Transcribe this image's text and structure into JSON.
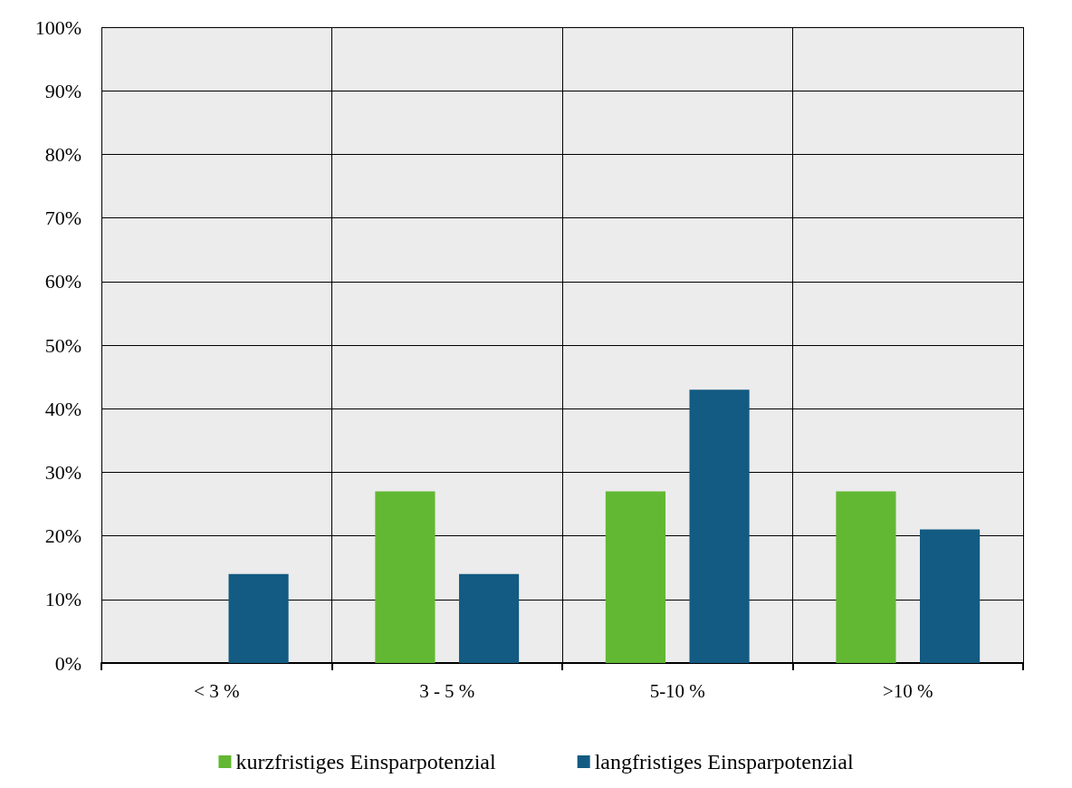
{
  "chart_data": {
    "type": "bar",
    "categories": [
      "< 3 %",
      "3 - 5 %",
      "5-10 %",
      ">10 %"
    ],
    "series": [
      {
        "name": "kurzfristiges Einsparpotenzial",
        "color": "#62b832",
        "values": [
          0,
          27,
          27,
          27
        ]
      },
      {
        "name": "langfristiges Einsparpotenzial",
        "color": "#135b82",
        "values": [
          14,
          14,
          43,
          21
        ]
      }
    ],
    "ylim": [
      0,
      100
    ],
    "yticks": [
      {
        "value": 0,
        "label": "0%"
      },
      {
        "value": 10,
        "label": "10%"
      },
      {
        "value": 20,
        "label": "20%"
      },
      {
        "value": 30,
        "label": "30%"
      },
      {
        "value": 40,
        "label": "40%"
      },
      {
        "value": 50,
        "label": "50%"
      },
      {
        "value": 60,
        "label": "60%"
      },
      {
        "value": 70,
        "label": "70%"
      },
      {
        "value": 80,
        "label": "80%"
      },
      {
        "value": 90,
        "label": "90%"
      },
      {
        "value": 100,
        "label": "100%"
      }
    ],
    "grid": true,
    "legend": "bottom"
  }
}
